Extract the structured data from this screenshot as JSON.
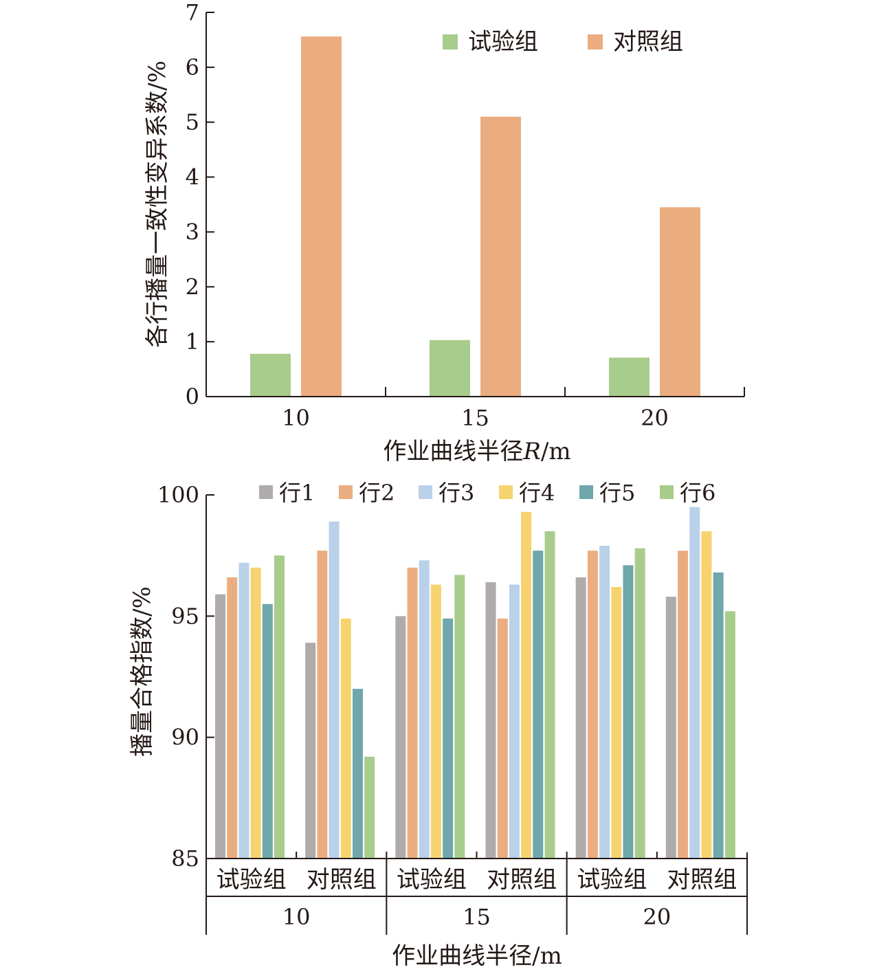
{
  "chart_data": [
    {
      "type": "bar",
      "ylabel": "各行播量一致性变异系数/%",
      "xlabel_text": "作业曲线半径",
      "xlabel_var": "R",
      "xlabel_unit": "/m",
      "categories": [
        "10",
        "15",
        "20"
      ],
      "ylim": [
        0,
        7
      ],
      "yticks": [
        "0",
        "1",
        "2",
        "3",
        "4",
        "5",
        "6",
        "7"
      ],
      "legend_position": "top-right",
      "series": [
        {
          "name": "试验组",
          "color": "#a8cc8c",
          "values": [
            0.78,
            1.03,
            0.71
          ]
        },
        {
          "name": "对照组",
          "color": "#ebad80",
          "values": [
            6.56,
            5.1,
            3.45
          ]
        }
      ]
    },
    {
      "type": "bar",
      "ylabel": "播量合格指数/%",
      "xlabel": "作业曲线半径/m",
      "ylim": [
        85,
        100
      ],
      "yticks": [
        "85",
        "90",
        "95",
        "100"
      ],
      "legend_position": "top",
      "radius_groups": [
        "10",
        "15",
        "20"
      ],
      "group_labels": [
        "试验组",
        "对照组",
        "试验组",
        "对照组",
        "试验组",
        "对照组"
      ],
      "series": [
        {
          "name": "行1",
          "color": "#afabab",
          "values": [
            95.9,
            93.9,
            95.0,
            96.4,
            96.6,
            95.8
          ]
        },
        {
          "name": "行2",
          "color": "#ebad80",
          "values": [
            96.6,
            97.7,
            97.0,
            94.9,
            97.7,
            97.7
          ]
        },
        {
          "name": "行3",
          "color": "#b9d1e9",
          "values": [
            97.2,
            98.9,
            97.3,
            96.3,
            97.9,
            99.5
          ]
        },
        {
          "name": "行4",
          "color": "#f7d36f",
          "values": [
            97.0,
            94.9,
            96.3,
            99.3,
            96.2,
            98.5
          ]
        },
        {
          "name": "行5",
          "color": "#6fa7ab",
          "values": [
            95.5,
            92.0,
            94.9,
            97.7,
            97.1,
            96.8
          ]
        },
        {
          "name": "行6",
          "color": "#a8cc8c",
          "values": [
            97.5,
            89.2,
            96.7,
            98.5,
            97.8,
            95.2
          ]
        }
      ]
    }
  ]
}
